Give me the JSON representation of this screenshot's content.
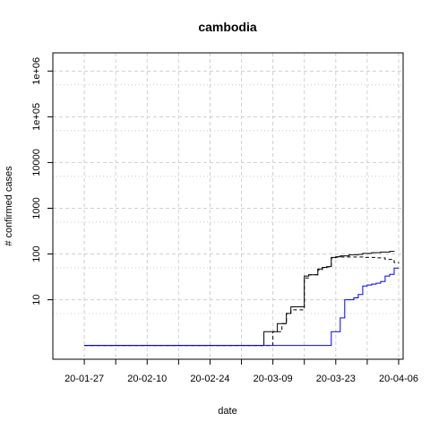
{
  "chart_data": {
    "type": "line",
    "title": "cambodia",
    "xlabel": "date",
    "ylabel": "# confirmed cases",
    "y_scale": "log",
    "xlim": [
      "2020-01-20",
      "2020-04-07"
    ],
    "ylim": [
      0.5,
      2500000
    ],
    "grid": true,
    "x_ticks": [
      {
        "date": "2020-01-27",
        "label": "20-01-27"
      },
      {
        "date": "2020-02-10",
        "label": "20-02-10"
      },
      {
        "date": "2020-02-24",
        "label": "20-02-24"
      },
      {
        "date": "2020-03-09",
        "label": "20-03-09"
      },
      {
        "date": "2020-03-23",
        "label": "20-03-23"
      },
      {
        "date": "2020-04-06",
        "label": "20-04-06"
      }
    ],
    "y_ticks": [
      {
        "value": 10,
        "label": "10"
      },
      {
        "value": 100,
        "label": "100"
      },
      {
        "value": 1000,
        "label": "1000"
      },
      {
        "value": 10000,
        "label": "10000"
      },
      {
        "value": 100000,
        "label": "1e+05"
      },
      {
        "value": 1000000,
        "label": "1e+06"
      }
    ],
    "series": [
      {
        "color": "#000000",
        "dash": "",
        "points": [
          [
            "2020-01-27",
            1
          ],
          [
            "2020-03-06",
            1
          ],
          [
            "2020-03-07",
            2
          ],
          [
            "2020-03-09",
            2
          ],
          [
            "2020-03-10",
            3
          ],
          [
            "2020-03-11",
            3
          ],
          [
            "2020-03-12",
            5
          ],
          [
            "2020-03-13",
            7
          ],
          [
            "2020-03-15",
            7
          ],
          [
            "2020-03-16",
            33
          ],
          [
            "2020-03-17",
            35
          ],
          [
            "2020-03-18",
            35
          ],
          [
            "2020-03-19",
            47
          ],
          [
            "2020-03-20",
            51
          ],
          [
            "2020-03-21",
            53
          ],
          [
            "2020-03-22",
            84
          ],
          [
            "2020-03-23",
            87
          ],
          [
            "2020-03-24",
            91
          ],
          [
            "2020-03-26",
            96
          ],
          [
            "2020-03-28",
            98
          ],
          [
            "2020-03-29",
            103
          ],
          [
            "2020-03-31",
            107
          ],
          [
            "2020-04-02",
            110
          ],
          [
            "2020-04-04",
            114
          ],
          [
            "2020-04-05",
            115
          ]
        ]
      },
      {
        "color": "#000000",
        "dash": "4,3",
        "points": [
          [
            "2020-01-27",
            1
          ],
          [
            "2020-03-08",
            1
          ],
          [
            "2020-03-09",
            2
          ],
          [
            "2020-03-11",
            3
          ],
          [
            "2020-03-12",
            5
          ],
          [
            "2020-03-13",
            6
          ],
          [
            "2020-03-15",
            6
          ],
          [
            "2020-03-16",
            30
          ],
          [
            "2020-03-17",
            35
          ],
          [
            "2020-03-18",
            35
          ],
          [
            "2020-03-19",
            45
          ],
          [
            "2020-03-20",
            50
          ],
          [
            "2020-03-21",
            52
          ],
          [
            "2020-03-22",
            82
          ],
          [
            "2020-03-23",
            85
          ],
          [
            "2020-03-24",
            86
          ],
          [
            "2020-03-27",
            86
          ],
          [
            "2020-03-29",
            84
          ],
          [
            "2020-03-31",
            84
          ],
          [
            "2020-04-01",
            82
          ],
          [
            "2020-04-03",
            76
          ],
          [
            "2020-04-05",
            65
          ],
          [
            "2020-04-06",
            62
          ]
        ]
      },
      {
        "color": "#0000ff",
        "dash": "",
        "points": [
          [
            "2020-01-27",
            1
          ],
          [
            "2020-03-21",
            1
          ],
          [
            "2020-03-22",
            2
          ],
          [
            "2020-03-23",
            2
          ],
          [
            "2020-03-24",
            4
          ],
          [
            "2020-03-25",
            10
          ],
          [
            "2020-03-26",
            10
          ],
          [
            "2020-03-27",
            11
          ],
          [
            "2020-03-28",
            13
          ],
          [
            "2020-03-29",
            20
          ],
          [
            "2020-03-30",
            21
          ],
          [
            "2020-03-31",
            22
          ],
          [
            "2020-04-01",
            23
          ],
          [
            "2020-04-02",
            25
          ],
          [
            "2020-04-03",
            33
          ],
          [
            "2020-04-04",
            36
          ],
          [
            "2020-04-05",
            49
          ],
          [
            "2020-04-06",
            50
          ]
        ]
      }
    ]
  }
}
